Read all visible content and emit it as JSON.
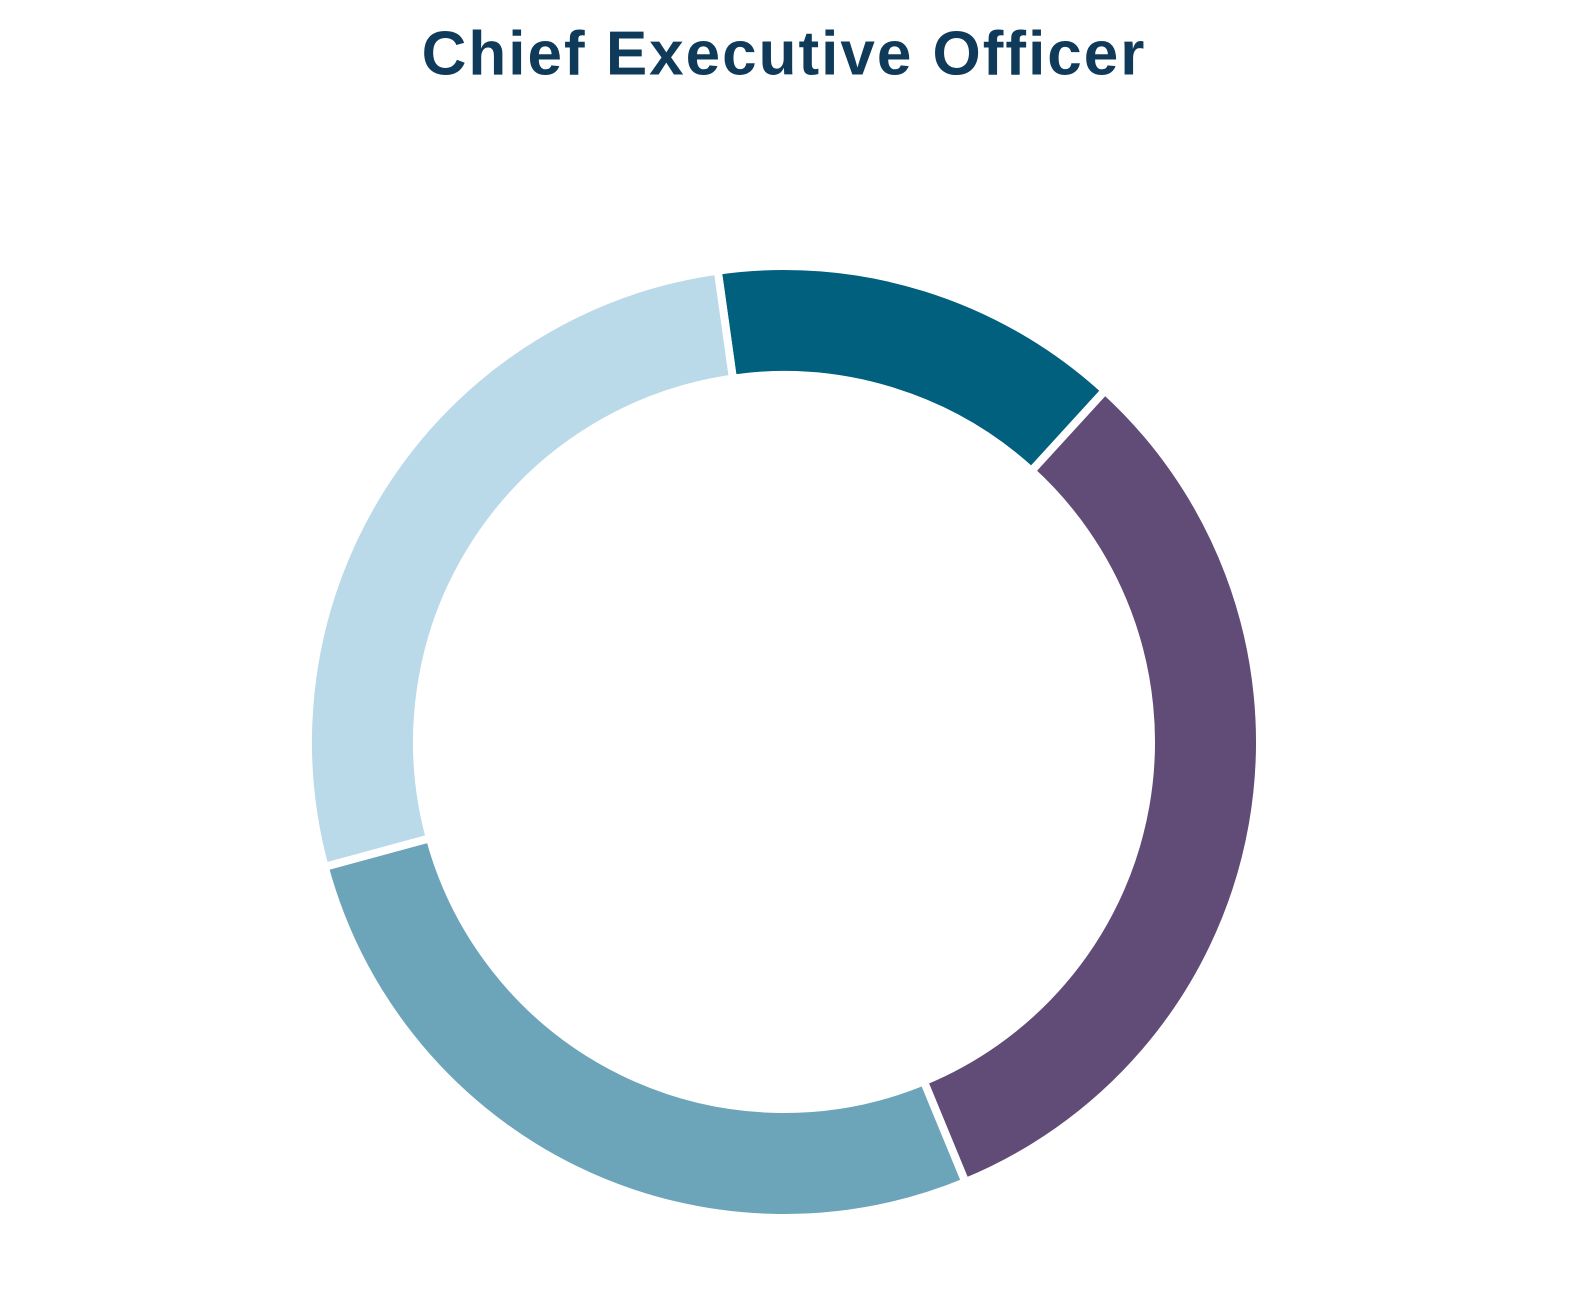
{
  "chart_data": {
    "type": "donut",
    "title": "Chief Executive Officer",
    "values": [
      14,
      32,
      27,
      27
    ],
    "colors": [
      "#00607e",
      "#614b77",
      "#6ca4b9",
      "#bad9e9"
    ]
  }
}
